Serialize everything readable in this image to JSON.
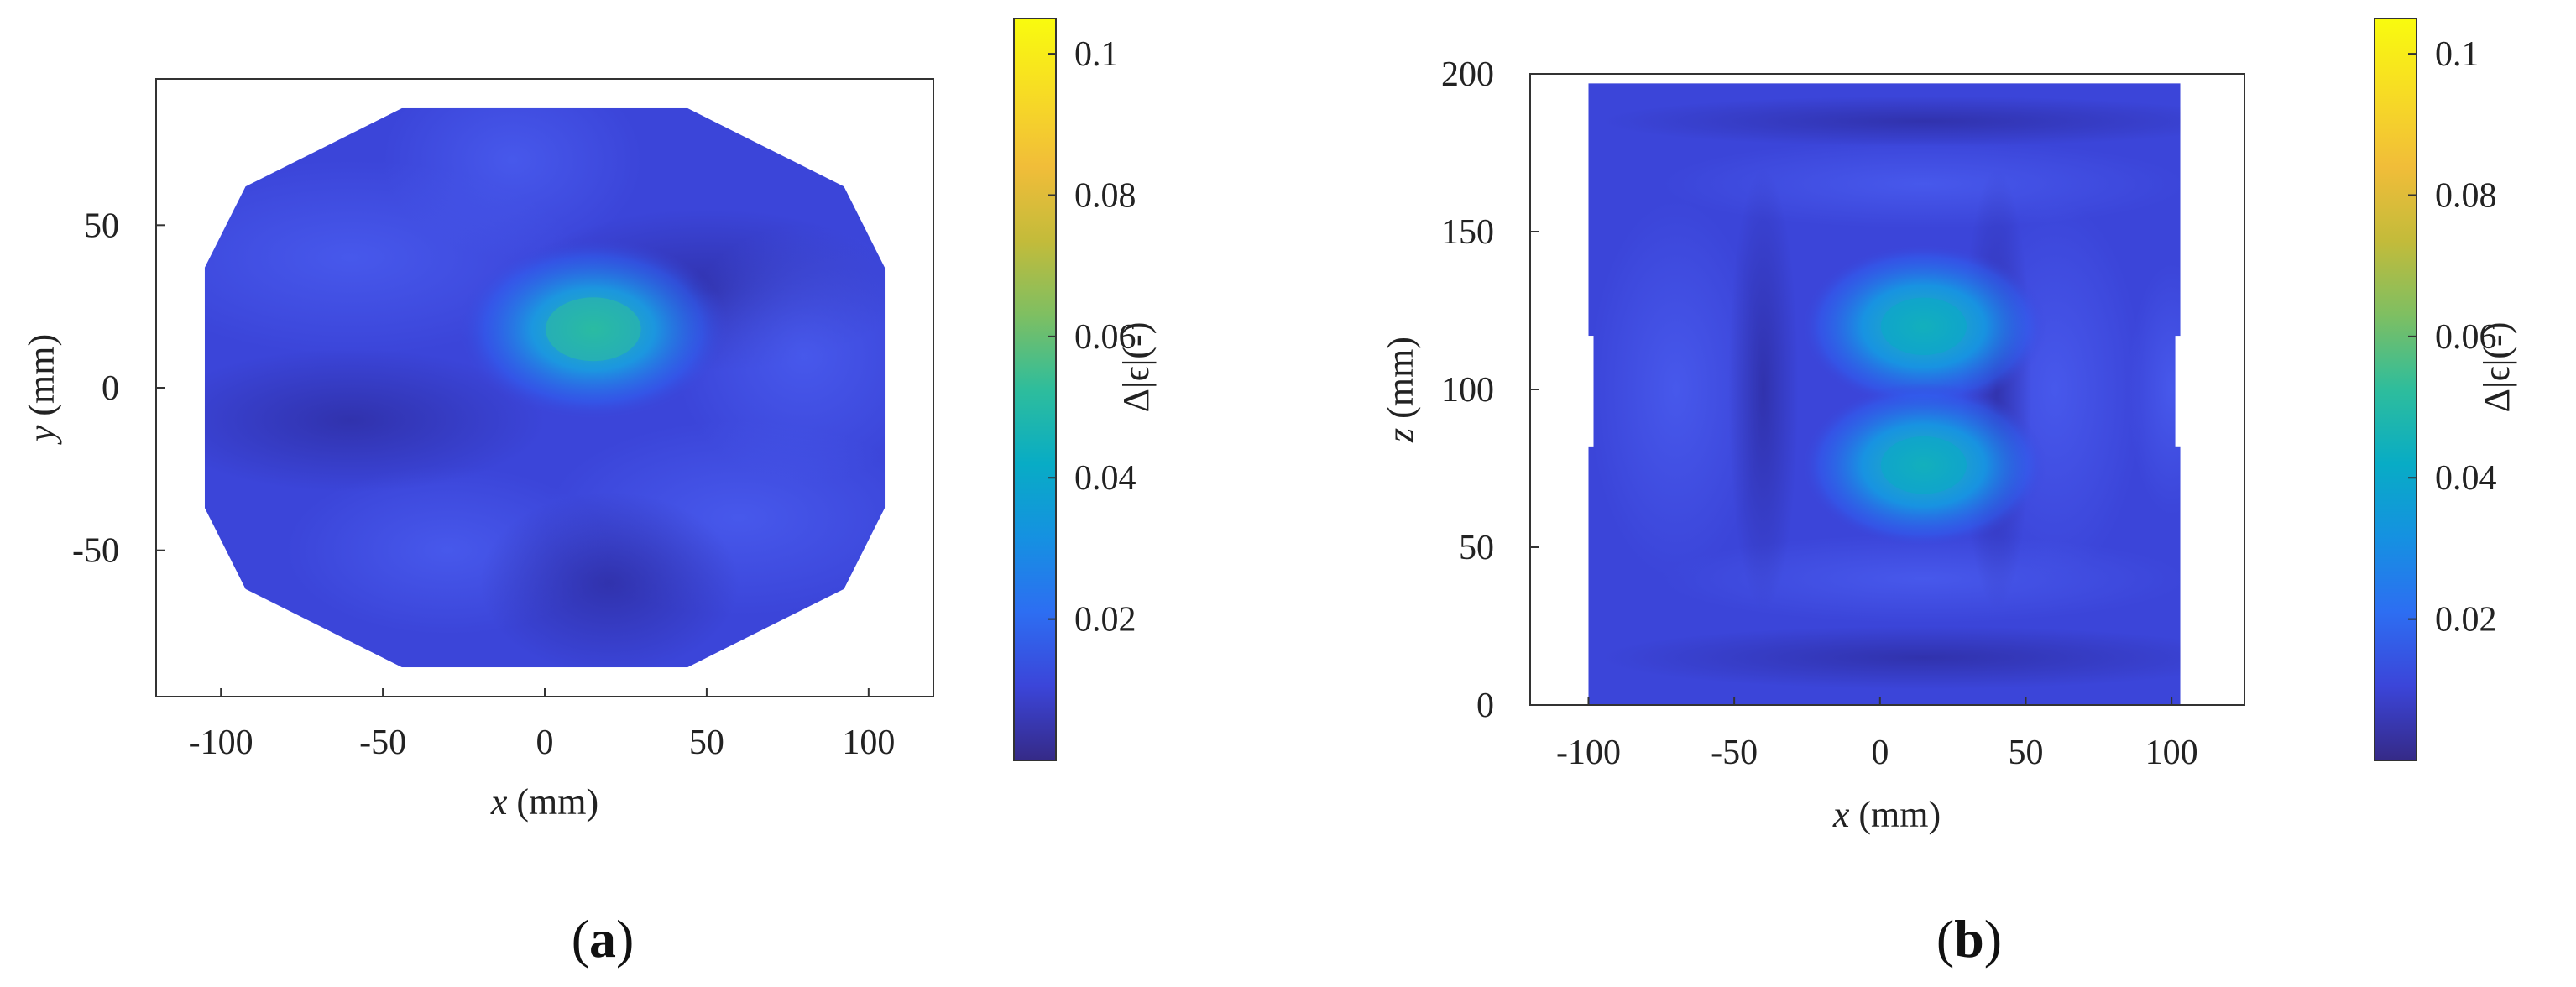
{
  "chart_data": [
    {
      "type": "heatmap",
      "panel_label": {
        "open": "(",
        "letter": "a",
        "close": ")"
      },
      "xlabel": {
        "var": "x",
        "unit": " (mm)"
      },
      "ylabel": {
        "var": "y",
        "unit": " (mm)"
      },
      "xlim": [
        -120,
        120
      ],
      "ylim": [
        -95,
        95
      ],
      "xticks": [
        -100,
        -50,
        0,
        50,
        100
      ],
      "yticks": [
        -50,
        0,
        50
      ],
      "colorbar": {
        "label": "Δ|ϵ|(-)",
        "range": [
          0,
          0.105
        ],
        "ticks": [
          0.02,
          0.04,
          0.06,
          0.08,
          0.1
        ],
        "colormap": "parula"
      },
      "domain_shape": "octagon",
      "domain_extent": {
        "x": [
          -105,
          105
        ],
        "y": [
          -86,
          86
        ]
      },
      "background_value": 0.006,
      "hotspots": [
        {
          "x": 15,
          "y": 18,
          "value": 0.048
        }
      ]
    },
    {
      "type": "heatmap",
      "panel_label": {
        "open": "(",
        "letter": "b",
        "close": ")"
      },
      "xlabel": {
        "var": "x",
        "unit": " (mm)"
      },
      "ylabel": {
        "var": "z",
        "unit": " (mm)"
      },
      "xlim": [
        -120,
        125
      ],
      "ylim": [
        0,
        200
      ],
      "xticks": [
        -100,
        -50,
        0,
        50,
        100
      ],
      "yticks": [
        0,
        50,
        100,
        150,
        200
      ],
      "colorbar": {
        "label": "Δ|ϵ|(-)",
        "range": [
          0,
          0.105
        ],
        "ticks": [
          0.02,
          0.04,
          0.06,
          0.08,
          0.1
        ],
        "colormap": "parula"
      },
      "domain_extent": {
        "x": [
          -100,
          103
        ],
        "y": [
          0,
          197
        ]
      },
      "background_value": 0.006,
      "hotspots": [
        {
          "x": 15,
          "y": 120,
          "value": 0.045
        },
        {
          "x": 15,
          "y": 76,
          "value": 0.046
        }
      ]
    }
  ],
  "colors": {
    "parula": [
      "#352a87",
      "#3b45d9",
      "#2d6ef2",
      "#1591e1",
      "#08acc5",
      "#2ebd9c",
      "#7ebf62",
      "#c3bb3a",
      "#f1bd39",
      "#f7dc24",
      "#f9fb0e"
    ]
  }
}
